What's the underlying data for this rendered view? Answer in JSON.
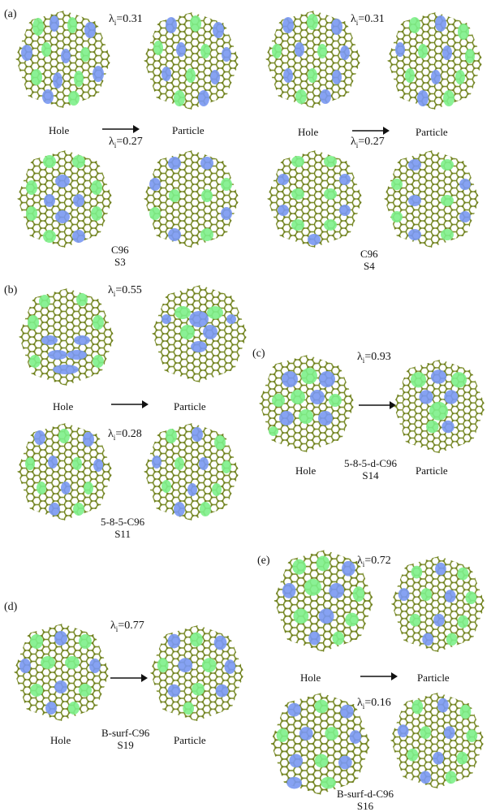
{
  "colors": {
    "carbon": "#8a9a2a",
    "bond": "#7d8f2b",
    "hydrogen": "#e8e8e8",
    "green": "#7ef08a",
    "blue": "#7a98f2"
  },
  "labels": {
    "hole": "Hole",
    "particle": "Particle"
  },
  "panels": {
    "a": {
      "tag": "(a)",
      "left": {
        "lam1": "0.31",
        "lam2": "0.27",
        "name": "C96",
        "state": "S3"
      },
      "right": {
        "lam1": "0.31",
        "lam2": "0.27",
        "name": "C96",
        "state": "S4"
      }
    },
    "b": {
      "tag": "(b)",
      "lam1": "0.55",
      "lam2": "0.28",
      "name": "5-8-5-C96",
      "state": "S11"
    },
    "c": {
      "tag": "(c)",
      "lam1": "0.93",
      "name": "5-8-5-d-C96",
      "state": "S14"
    },
    "d": {
      "tag": "(d)",
      "lam1": "0.77",
      "name": "B-surf-C96",
      "state": "S19"
    },
    "e": {
      "tag": "(e)",
      "lam1": "0.72",
      "lam2": "0.16",
      "name": "B-surf-d-C96",
      "state": "S16"
    }
  }
}
